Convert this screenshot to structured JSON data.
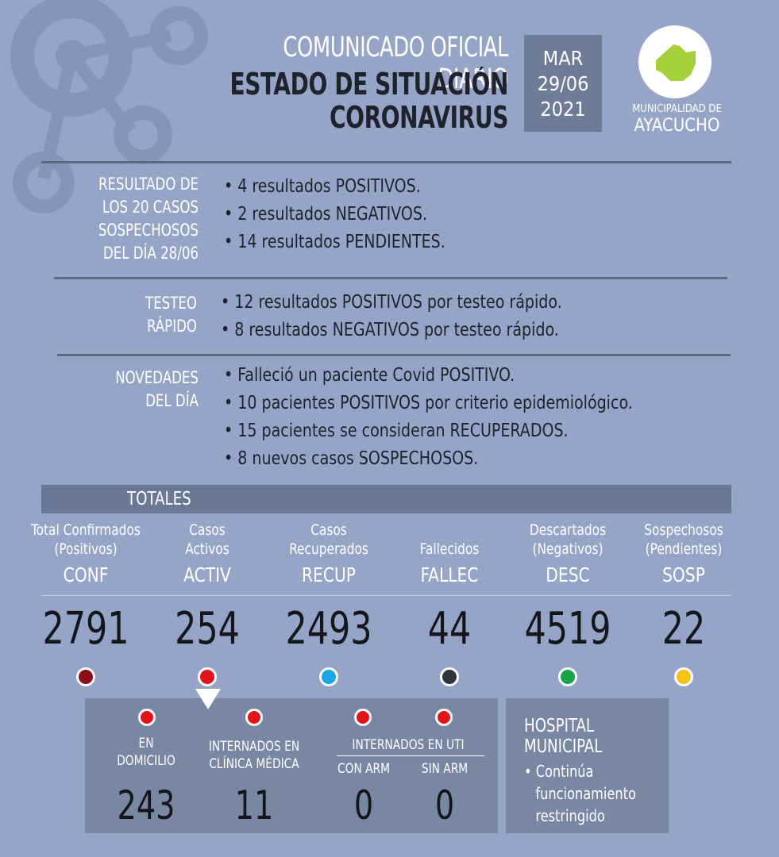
{
  "header": {
    "line1": "COMUNICADO OFICIAL DIARIO",
    "line2": "ESTADO DE SITUACIÓN",
    "line3": "CORONAVIRUS",
    "date": {
      "day": "MAR",
      "date": "29/06",
      "year": "2021"
    },
    "logo": {
      "small": "MUNICIPALIDAD DE",
      "big": "AYACUCHO",
      "icon": "ayacucho-map-icon",
      "icon_color": "#a4d03a"
    }
  },
  "sections": [
    {
      "label": [
        "RESULTADO DE",
        "LOS 20 CASOS",
        "SOSPECHOSOS",
        "DEL DÍA 28/06"
      ],
      "items": [
        "4 resultados POSITIVOS.",
        "2 resultados NEGATIVOS.",
        "14 resultados PENDIENTES."
      ]
    },
    {
      "label": [
        "TESTEO",
        "RÁPIDO"
      ],
      "items": [
        "12 resultados POSITIVOS por testeo rápido.",
        "8 resultados NEGATIVOS por testeo rápido."
      ]
    },
    {
      "label": [
        "NOVEDADES",
        "DEL DÍA"
      ],
      "items": [
        "Falleció un paciente Covid POSITIVO.",
        "10 pacientes POSITIVOS por criterio epidemiológico.",
        "15 pacientes se consideran RECUPERADOS.",
        "8 nuevos casos SOSPECHOSOS."
      ]
    }
  ],
  "totals": {
    "label": "TOTALES",
    "columns": [
      {
        "desc1": "Total Confirmados",
        "desc2": "(Positivos)",
        "abbr": "CONF",
        "value": "2791",
        "color": "#8b0d17"
      },
      {
        "desc1": "Casos",
        "desc2": "Activos",
        "abbr": "ACTIV",
        "value": "254",
        "color": "#e2141b"
      },
      {
        "desc1": "Casos",
        "desc2": "Recuperados",
        "abbr": "RECUP",
        "value": "2493",
        "color": "#1aa6e4"
      },
      {
        "desc1": "Fallecidos",
        "desc2": "",
        "abbr": "FALLEC",
        "value": "44",
        "color": "#2e333d"
      },
      {
        "desc1": "Descartados",
        "desc2": "(Negativos)",
        "abbr": "DESC",
        "value": "4519",
        "color": "#16a34a"
      },
      {
        "desc1": "Sospechosos",
        "desc2": "(Pendientes)",
        "abbr": "SOSP",
        "value": "22",
        "color": "#f3c417"
      }
    ]
  },
  "activos_breakdown": {
    "domicilio": {
      "label1": "EN",
      "label2": "DOMICILIO",
      "value": "243"
    },
    "clinica": {
      "label1": "INTERNADOS EN",
      "label2": "CLÍNICA MÉDICA",
      "value": "11"
    },
    "uti": {
      "label": "INTERNADOS EN UTI",
      "con_arm": {
        "label": "CON ARM",
        "value": "0"
      },
      "sin_arm": {
        "label": "SIN ARM",
        "value": "0"
      }
    }
  },
  "hospital": {
    "title1": "HOSPITAL",
    "title2": "MUNICIPAL",
    "body": [
      "Continúa",
      "funcionamiento",
      "restringido"
    ]
  }
}
